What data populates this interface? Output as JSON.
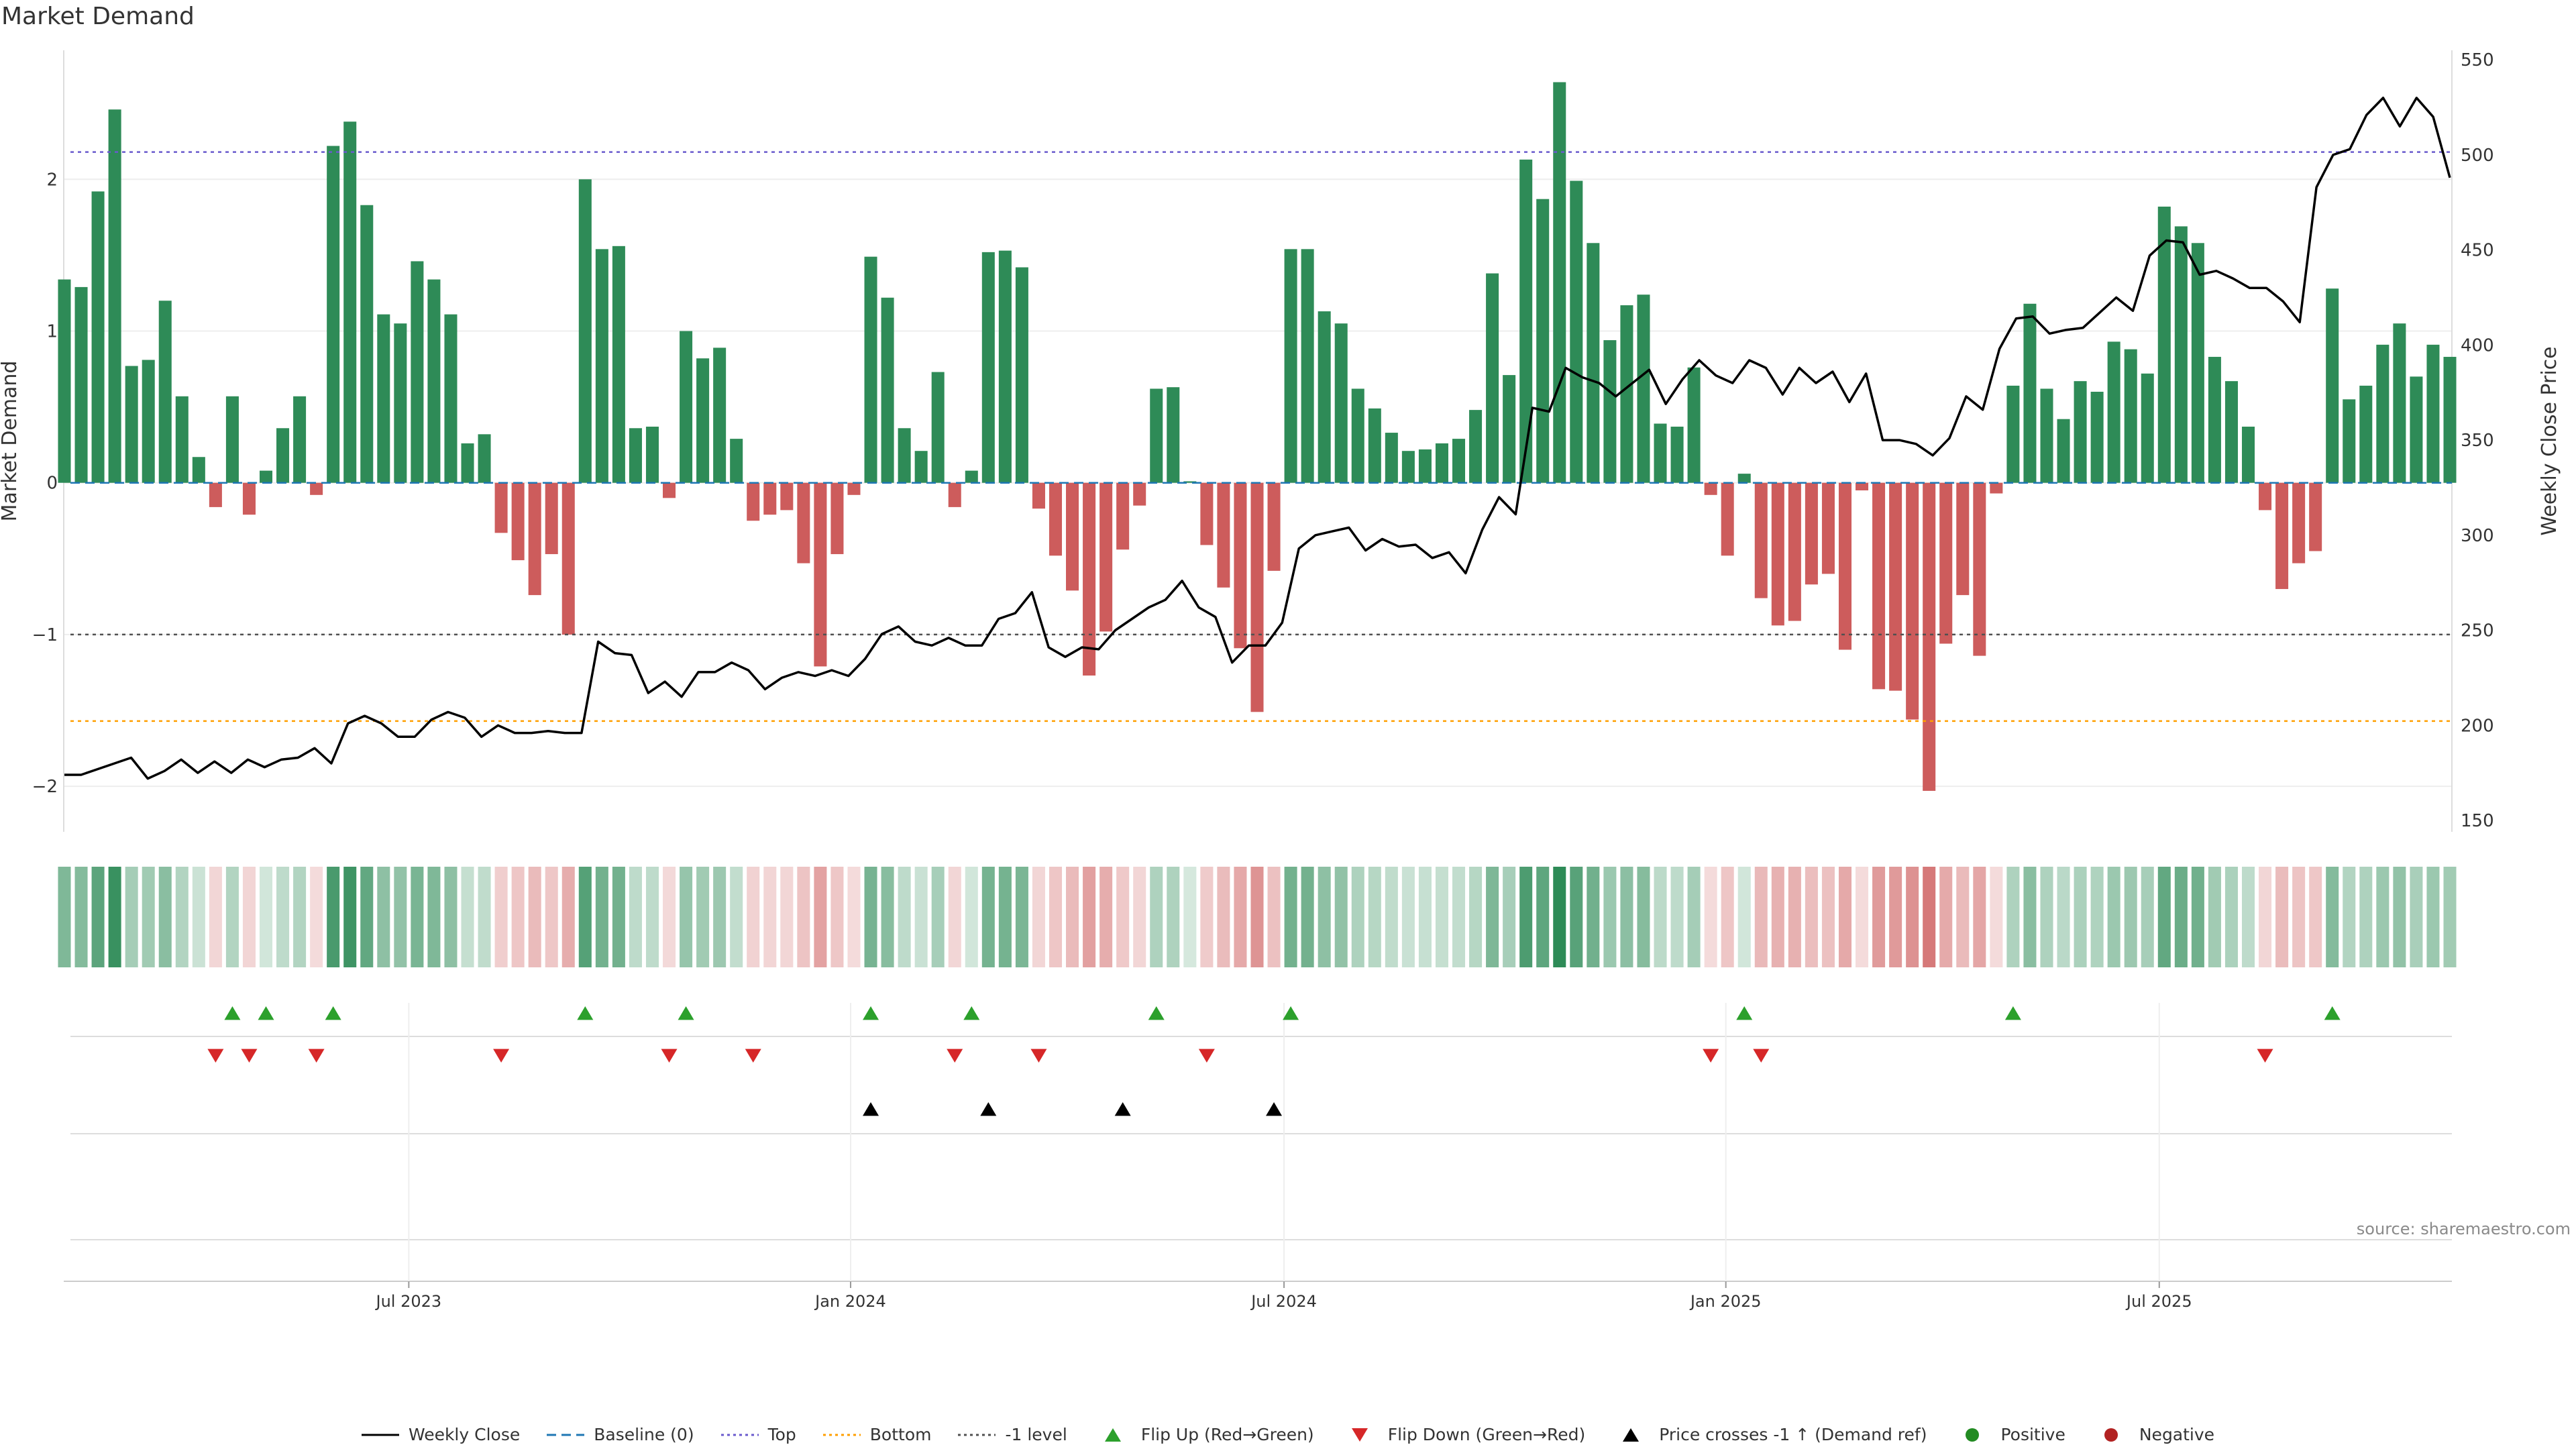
{
  "title": "Market Demand",
  "source": "source: sharemaestro.com",
  "colors": {
    "positive": "#2e8b57",
    "negative": "#cd5c5c",
    "price_line": "#000000",
    "baseline": "#1f77b4",
    "top": "#6a5acd",
    "bottom": "#ff9f00",
    "minus1": "#505050",
    "flip_up": "#2ca02c",
    "flip_down": "#d62728",
    "price_cross": "#000000",
    "dot_positive": "#228b22",
    "dot_negative": "#b22222"
  },
  "legend": [
    {
      "key": "weekly_close",
      "label": "Weekly Close"
    },
    {
      "key": "baseline",
      "label": "Baseline (0)"
    },
    {
      "key": "top",
      "label": "Top"
    },
    {
      "key": "bottom",
      "label": "Bottom"
    },
    {
      "key": "minus1",
      "label": "-1 level"
    },
    {
      "key": "flip_up",
      "label": "Flip Up (Red→Green)"
    },
    {
      "key": "flip_down",
      "label": "Flip Down (Green→Red)"
    },
    {
      "key": "price_cross",
      "label": "Price crosses -1 ↑ (Demand ref)"
    },
    {
      "key": "positive",
      "label": "Positive"
    },
    {
      "key": "negative",
      "label": "Negative"
    }
  ],
  "chart_data": {
    "type": "bar",
    "title": "Market Demand",
    "ylabel": "Market Demand",
    "y2label": "Weekly Close Price",
    "ylim": [
      -2.3,
      2.85
    ],
    "y2lim": [
      144,
      555
    ],
    "y_ticks": [
      -2,
      -1,
      0,
      1,
      2
    ],
    "y2_ticks": [
      150,
      200,
      250,
      300,
      350,
      400,
      450,
      500,
      550
    ],
    "x_ticks": [
      {
        "label": "Jul 2023",
        "week": 20.5
      },
      {
        "label": "Jan 2024",
        "week": 46.8
      },
      {
        "label": "Jul 2024",
        "week": 72.6
      },
      {
        "label": "Jan 2025",
        "week": 98.9
      },
      {
        "label": "Jul 2025",
        "week": 124.7
      }
    ],
    "reference_lines": {
      "top": 2.18,
      "bottom": -1.57,
      "minus1": -1.0,
      "baseline": 0
    },
    "demand": [
      1.34,
      1.29,
      1.92,
      2.46,
      0.77,
      0.81,
      1.2,
      0.57,
      0.17,
      -0.16,
      0.57,
      -0.21,
      0.08,
      0.36,
      0.57,
      -0.08,
      2.22,
      2.38,
      1.83,
      1.11,
      1.05,
      1.46,
      1.34,
      1.11,
      0.26,
      0.32,
      -0.33,
      -0.51,
      -0.74,
      -0.47,
      -1.0,
      2.0,
      1.54,
      1.56,
      0.36,
      0.37,
      -0.1,
      1.0,
      0.82,
      0.89,
      0.29,
      -0.25,
      -0.21,
      -0.18,
      -0.53,
      -1.21,
      -0.47,
      -0.08,
      1.49,
      1.22,
      0.36,
      0.21,
      0.73,
      -0.16,
      0.08,
      1.52,
      1.53,
      1.42,
      -0.17,
      -0.48,
      -0.71,
      -1.27,
      -0.98,
      -0.44,
      -0.15,
      0.62,
      0.63,
      0.01,
      -0.41,
      -0.69,
      -1.09,
      -1.51,
      -0.58,
      1.54,
      1.54,
      1.13,
      1.05,
      0.62,
      0.49,
      0.33,
      0.21,
      0.22,
      0.26,
      0.29,
      0.48,
      1.38,
      0.71,
      2.13,
      1.87,
      2.64,
      1.99,
      1.58,
      0.94,
      1.17,
      1.24,
      0.39,
      0.37,
      0.76,
      -0.08,
      -0.48,
      0.06,
      -0.76,
      -0.94,
      -0.91,
      -0.67,
      -0.6,
      -1.1,
      -0.05,
      -1.36,
      -1.37,
      -1.56,
      -2.03,
      -1.06,
      -0.74,
      -1.14,
      -0.07,
      0.64,
      1.18,
      0.62,
      0.42,
      0.67,
      0.6,
      0.93,
      0.88,
      0.72,
      1.82,
      1.69,
      1.58,
      0.83,
      0.67,
      0.37,
      -0.18,
      -0.7,
      -0.53,
      -0.45,
      1.28,
      0.55,
      0.64,
      0.91,
      1.05,
      0.7,
      0.91,
      0.83
    ],
    "price": [
      174,
      174,
      177,
      180,
      183,
      172,
      176,
      182,
      175,
      181,
      175,
      182,
      178,
      182,
      183,
      188,
      180,
      201,
      205,
      201,
      194,
      194,
      203,
      207,
      204,
      194,
      200,
      196,
      196,
      197,
      196,
      196,
      244,
      238,
      237,
      217,
      223,
      215,
      228,
      228,
      233,
      229,
      219,
      225,
      228,
      226,
      229,
      226,
      235,
      248,
      252,
      244,
      242,
      246,
      242,
      242,
      256,
      259,
      270,
      241,
      236,
      241,
      240,
      250,
      256,
      262,
      266,
      276,
      262,
      257,
      233,
      242,
      242,
      254,
      293,
      300,
      302,
      304,
      292,
      298,
      294,
      295,
      288,
      291,
      280,
      303,
      320,
      311,
      367,
      365,
      388,
      383,
      380,
      373,
      380,
      387,
      369,
      382,
      392,
      384,
      380,
      392,
      388,
      374,
      388,
      380,
      386,
      370,
      385,
      350,
      350,
      348,
      342,
      351,
      373,
      366,
      398,
      414,
      415,
      406,
      408,
      409,
      417,
      425,
      418,
      447,
      455,
      454,
      437,
      439,
      435,
      430,
      430,
      423,
      412,
      483,
      500,
      503,
      521,
      530,
      515,
      530,
      520,
      488
    ],
    "heat_strip": "Demand intensity per week (same values as demand series)",
    "events": {
      "flip_up": [
        10,
        12,
        16,
        31,
        37,
        48,
        54,
        65,
        73,
        100,
        116,
        135
      ],
      "flip_down": [
        9,
        11,
        15,
        26,
        36,
        41,
        53,
        58,
        68,
        98,
        101,
        131
      ],
      "price_crosses": [
        48,
        55,
        63,
        72
      ],
      "positive": [],
      "negative": []
    }
  }
}
